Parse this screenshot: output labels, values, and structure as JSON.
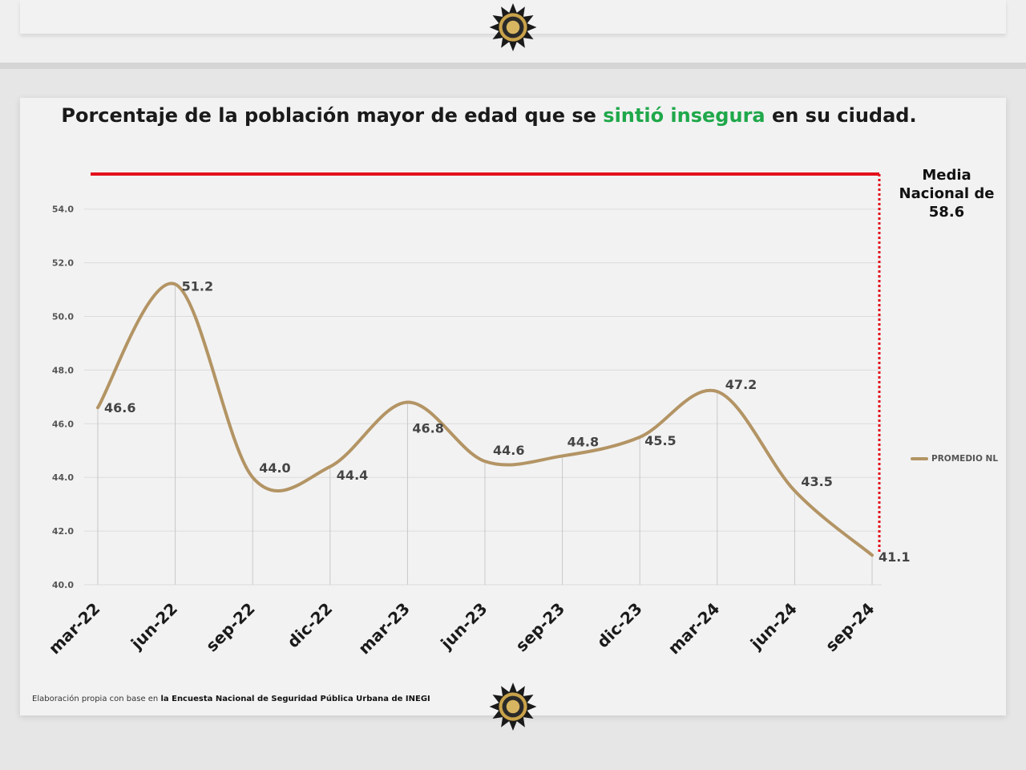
{
  "header_text": {
    "title_prefix": "Porcentaje de la población mayor de edad que se ",
    "title_highlight": "sintió insegura",
    "title_suffix": " en su ciudad."
  },
  "reference_note": {
    "line1": "Media",
    "line2": "Nacional de",
    "line3": "58.6"
  },
  "legend": {
    "label": "PROMEDIO NL"
  },
  "source": {
    "prefix": "Elaboración propia con base en ",
    "bold": "la Encuesta Nacional de Seguridad Pública Urbana de INEGI"
  },
  "colors": {
    "line": "#b39464",
    "reference": "#e3101b",
    "highlight": "#1fa84a",
    "grid": "#dcdcdc"
  },
  "icons": {
    "badge": "sheriff-star-badge-icon"
  },
  "chart_data": {
    "type": "line",
    "title": "Porcentaje de la población mayor de edad que se sintió insegura en su ciudad.",
    "categories": [
      "mar-22",
      "jun-22",
      "sep-22",
      "dic-22",
      "mar-23",
      "jun-23",
      "sep-23",
      "dic-23",
      "mar-24",
      "jun-24",
      "sep-24"
    ],
    "series": [
      {
        "name": "PROMEDIO NL",
        "values": [
          46.6,
          51.2,
          44.0,
          44.4,
          46.8,
          44.6,
          44.8,
          45.5,
          47.2,
          43.5,
          41.1
        ],
        "labels": [
          "46.6",
          "51.2",
          "44.0",
          "44.4",
          "46.8",
          "44.6",
          "44.8",
          "45.5",
          "47.2",
          "43.5",
          "41.1"
        ]
      }
    ],
    "reference_line": {
      "value": 58.6,
      "label": "Media Nacional de 58.6"
    },
    "ylim": [
      40,
      54
    ],
    "y_ticks": [
      "40.0",
      "42.0",
      "44.0",
      "46.0",
      "48.0",
      "50.0",
      "52.0",
      "54.0"
    ],
    "grid": true,
    "smooth": true,
    "legend_position": "right"
  }
}
